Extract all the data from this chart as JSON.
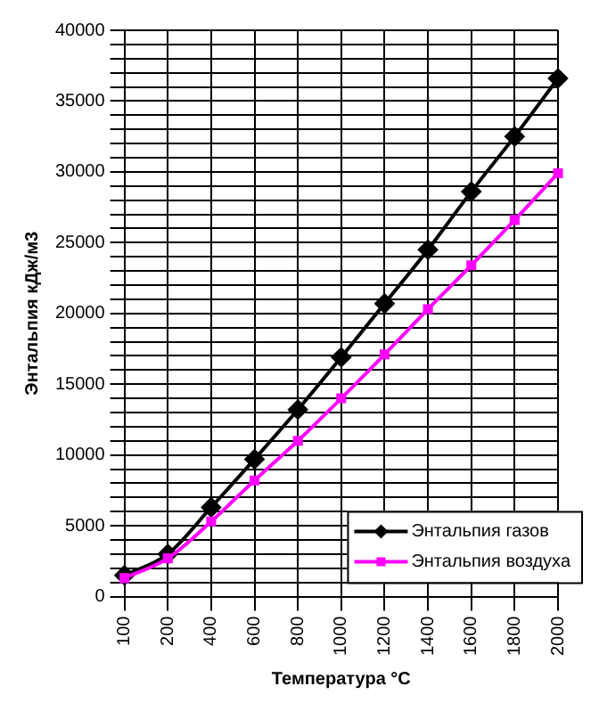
{
  "chart_data": {
    "type": "line",
    "xlabel": "Температура °С",
    "ylabel": "Энтальпия кДж/м3",
    "categories": [
      "100",
      "200",
      "400",
      "600",
      "800",
      "1000",
      "1200",
      "1400",
      "1600",
      "1800",
      "2000"
    ],
    "series": [
      {
        "name": "Энтальпия газов",
        "color": "#000000",
        "marker": "diamond",
        "values": [
          1500,
          3000,
          6300,
          9700,
          13200,
          16900,
          20700,
          24500,
          28600,
          32500,
          36600
        ]
      },
      {
        "name": "Энтальпия воздуха",
        "color": "#ff00ff",
        "marker": "square",
        "values": [
          1300,
          2700,
          5300,
          8200,
          11000,
          14000,
          17100,
          20300,
          23400,
          26600,
          29900
        ]
      }
    ],
    "ylim": [
      0,
      40000
    ],
    "yticks": [
      0,
      {
        "value": 1000,
        "label": null
      },
      {
        "value": 2000,
        "label": null
      },
      {
        "value": 3000,
        "label": null
      },
      {
        "value": 4000,
        "label": null
      },
      5000,
      {
        "value": 6000,
        "label": null
      },
      {
        "value": 7000,
        "label": null
      },
      {
        "value": 8000,
        "label": null
      },
      {
        "value": 9000,
        "label": null
      },
      10000,
      {
        "value": 11000,
        "label": null
      },
      {
        "value": 12000,
        "label": null
      },
      {
        "value": 13000,
        "label": null
      },
      {
        "value": 14000,
        "label": null
      },
      15000,
      {
        "value": 16000,
        "label": null
      },
      {
        "value": 17000,
        "label": null
      },
      {
        "value": 18000,
        "label": null
      },
      {
        "value": 19000,
        "label": null
      },
      20000,
      {
        "value": 21000,
        "label": null
      },
      {
        "value": 22000,
        "label": null
      },
      {
        "value": 23000,
        "label": null
      },
      {
        "value": 24000,
        "label": null
      },
      25000,
      {
        "value": 26000,
        "label": null
      },
      {
        "value": 27000,
        "label": null
      },
      {
        "value": 28000,
        "label": null
      },
      {
        "value": 29000,
        "label": null
      },
      30000,
      {
        "value": 31000,
        "label": null
      },
      {
        "value": 32000,
        "label": null
      },
      {
        "value": 33000,
        "label": null
      },
      {
        "value": 34000,
        "label": null
      },
      35000,
      {
        "value": 36000,
        "label": null
      },
      {
        "value": 37000,
        "label": null
      },
      {
        "value": 38000,
        "label": null
      },
      {
        "value": 39000,
        "label": null
      },
      40000
    ],
    "grid": true,
    "legend": "bottom right",
    "line_style": "solid"
  }
}
